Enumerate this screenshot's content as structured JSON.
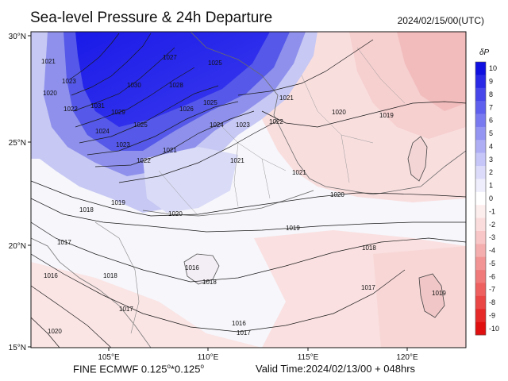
{
  "title": "Sea-level Pressure & 24h Departure",
  "timestamp": "2024/02/15/00(UTC)",
  "footer": {
    "model": "FINE ECMWF 0.125",
    "model_sep": "*0.125",
    "deg": "o",
    "valid": "Valid Time:2024/02/13/00 + 048hrs"
  },
  "axes": {
    "lat_labels": [
      "30°N",
      "25°N",
      "20°N",
      "15°N"
    ],
    "lon_labels": [
      "105°E",
      "110°E",
      "115°E",
      "120°E"
    ]
  },
  "colorbar": {
    "title": "δP",
    "levels": [
      "10",
      "9",
      "8",
      "7",
      "6",
      "5",
      "4",
      "3",
      "2",
      "1",
      "0",
      "-1",
      "-2",
      "-3",
      "-4",
      "-5",
      "-6",
      "-7",
      "-8",
      "-9",
      "-10"
    ],
    "colors": [
      "#1010e0",
      "#2a2ae6",
      "#4646ea",
      "#6060ee",
      "#7a7af0",
      "#9494f2",
      "#aeaef5",
      "#c6c6f8",
      "#dcdcfa",
      "#eeeefc",
      "#ffffff",
      "#fdeeee",
      "#fbdcdc",
      "#f8c6c6",
      "#f5aeae",
      "#f29494",
      "#f07a7a",
      "#ee6060",
      "#ea4646",
      "#e62a2a",
      "#e01010"
    ]
  },
  "contour_labels": [
    "1021",
    "1023",
    "1020",
    "1027",
    "1031",
    "1029",
    "1030",
    "1028",
    "1025",
    "1022",
    "1024",
    "1023",
    "1026",
    "1025",
    "1024",
    "1023",
    "1022",
    "1021",
    "1025",
    "1022",
    "1021",
    "1021",
    "1021",
    "1020",
    "1020",
    "1020",
    "1019",
    "1018",
    "1019",
    "1019",
    "1018",
    "1017",
    "1016",
    "1018",
    "1017",
    "1016",
    "1018",
    "1017",
    "1019",
    "1017",
    "1016",
    "1020"
  ]
}
